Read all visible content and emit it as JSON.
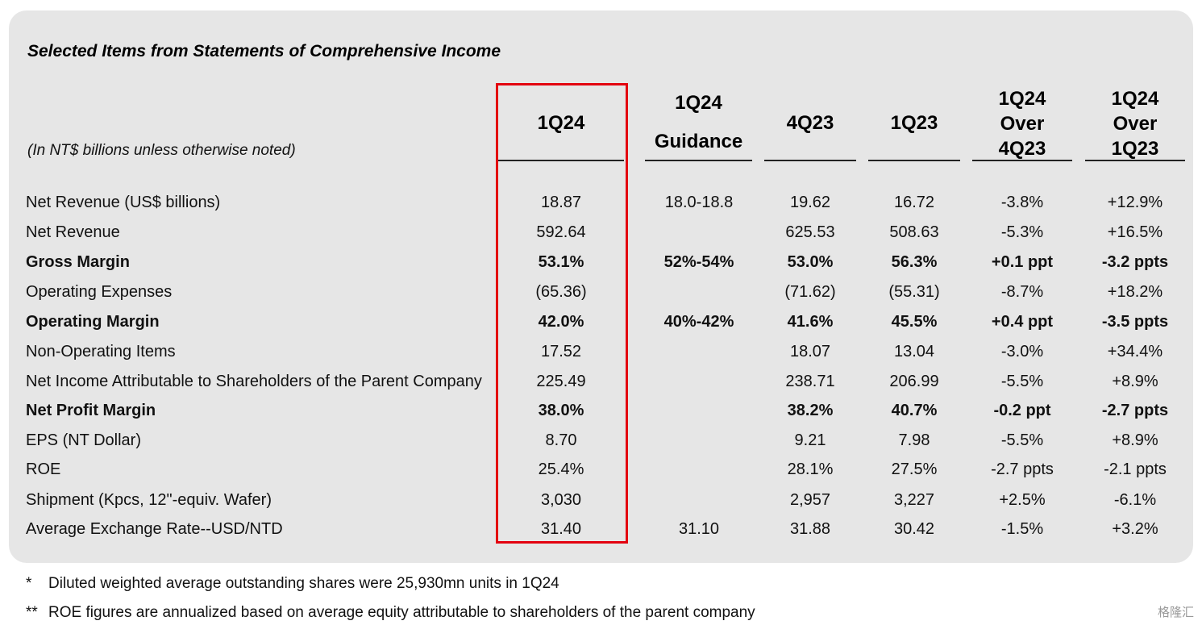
{
  "title": "Selected Items from Statements of Comprehensive Income",
  "units_note": "(In NT$ billions unless otherwise noted)",
  "columns": [
    {
      "line1": "1Q24",
      "line2": "",
      "line3": ""
    },
    {
      "line1": "1Q24",
      "line2": "Guidance",
      "line3": ""
    },
    {
      "line1": "4Q23",
      "line2": "",
      "line3": ""
    },
    {
      "line1": "1Q23",
      "line2": "",
      "line3": ""
    },
    {
      "line1": "1Q24",
      "line2": "Over",
      "line3": "4Q23"
    },
    {
      "line1": "1Q24",
      "line2": "Over",
      "line3": "1Q23"
    }
  ],
  "rows": [
    {
      "label": "Net Revenue (US$ billions)",
      "bold": false,
      "values": [
        "18.87",
        "18.0-18.8",
        "19.62",
        "16.72",
        "-3.8%",
        "+12.9%"
      ]
    },
    {
      "label": "Net Revenue",
      "bold": false,
      "values": [
        "592.64",
        "",
        "625.53",
        "508.63",
        "-5.3%",
        "+16.5%"
      ]
    },
    {
      "label": "Gross Margin",
      "bold": true,
      "values": [
        "53.1%",
        "52%-54%",
        "53.0%",
        "56.3%",
        "+0.1 ppt",
        "-3.2 ppts"
      ]
    },
    {
      "label": "Operating Expenses",
      "bold": false,
      "values": [
        "(65.36)",
        "",
        "(71.62)",
        "(55.31)",
        "-8.7%",
        "+18.2%"
      ]
    },
    {
      "label": "Operating Margin",
      "bold": true,
      "values": [
        "42.0%",
        "40%-42%",
        "41.6%",
        "45.5%",
        "+0.4 ppt",
        "-3.5 ppts"
      ]
    },
    {
      "label": "Non-Operating Items",
      "bold": false,
      "values": [
        "17.52",
        "",
        "18.07",
        "13.04",
        "-3.0%",
        "+34.4%"
      ]
    },
    {
      "label": "Net Income Attributable to Shareholders of the Parent Company",
      "bold": false,
      "values": [
        "225.49",
        "",
        "238.71",
        "206.99",
        "-5.5%",
        "+8.9%"
      ]
    },
    {
      "label": "Net Profit Margin",
      "bold": true,
      "values": [
        "38.0%",
        "",
        "38.2%",
        "40.7%",
        "-0.2 ppt",
        "-2.7 ppts"
      ]
    },
    {
      "label": "EPS (NT Dollar)",
      "bold": false,
      "values": [
        "8.70",
        "",
        "9.21",
        "7.98",
        "-5.5%",
        "+8.9%"
      ]
    },
    {
      "label": "ROE",
      "bold": false,
      "values": [
        "25.4%",
        "",
        "28.1%",
        "27.5%",
        "-2.7 ppts",
        "-2.1 ppts"
      ]
    },
    {
      "label": "Shipment (Kpcs, 12\"-equiv. Wafer)",
      "bold": false,
      "values": [
        "3,030",
        "",
        "2,957",
        "3,227",
        "+2.5%",
        "-6.1%"
      ]
    },
    {
      "label": "Average Exchange Rate--USD/NTD",
      "bold": false,
      "values": [
        "31.40",
        "31.10",
        "31.88",
        "30.42",
        "-1.5%",
        "+3.2%"
      ]
    }
  ],
  "footnotes": [
    {
      "mark": "*",
      "text": "Diluted weighted average outstanding shares were 25,930mn units in 1Q24"
    },
    {
      "mark": "**",
      "text": "ROE figures are annualized based on average equity attributable to shareholders of the parent company"
    }
  ],
  "watermark": "格隆汇",
  "colors": {
    "panel": "#e6e6e6",
    "highlight_border": "#e3000f"
  }
}
